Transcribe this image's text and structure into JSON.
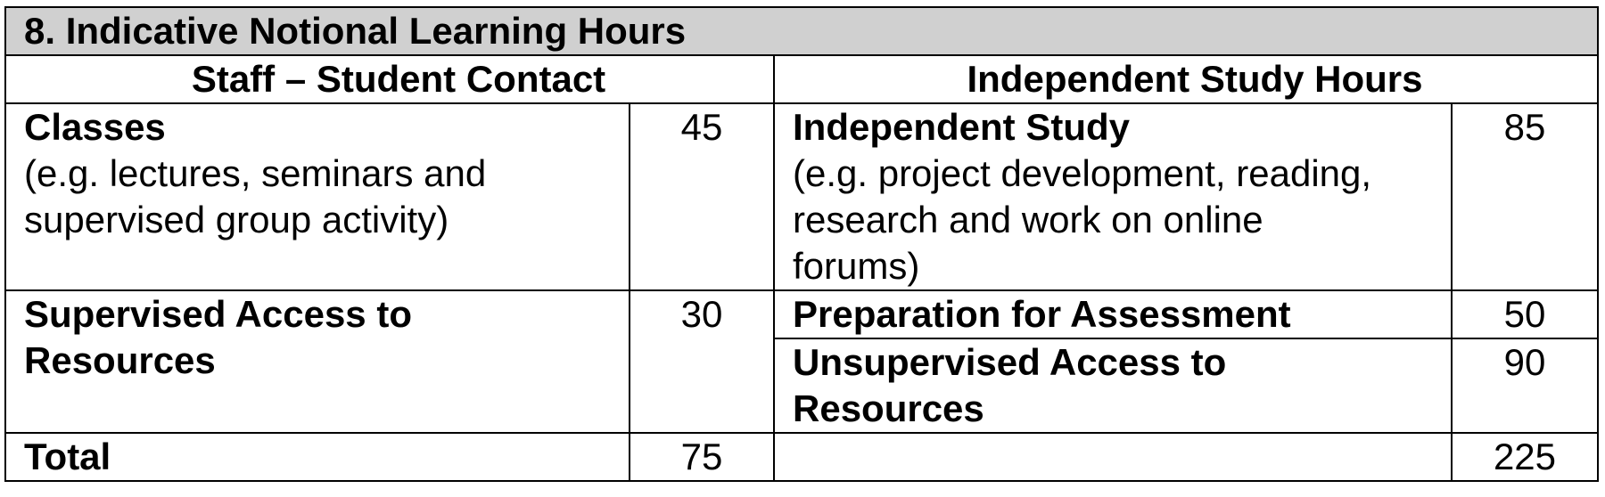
{
  "title": "8. Indicative Notional Learning Hours",
  "headers": {
    "left": "Staff – Student Contact",
    "right": "Independent Study Hours"
  },
  "rows": {
    "classes": {
      "label": "Classes",
      "desc_line1": "(e.g. lectures, seminars and",
      "desc_line2": "supervised group activity)",
      "value": "45"
    },
    "independent_study": {
      "label": "Independent Study",
      "desc_line1": "(e.g. project development, reading,",
      "desc_line2": "research and work on online",
      "desc_line3": "forums)",
      "value": "85"
    },
    "supervised_access": {
      "label_line1": "Supervised Access to",
      "label_line2": "Resources",
      "value": "30"
    },
    "preparation": {
      "label": "Preparation for Assessment",
      "value": "50"
    },
    "unsupervised_access": {
      "label_line1": "Unsupervised Access to",
      "label_line2": "Resources",
      "value": "90"
    },
    "total": {
      "label": "Total",
      "left_value": "75",
      "right_value": "225"
    }
  }
}
